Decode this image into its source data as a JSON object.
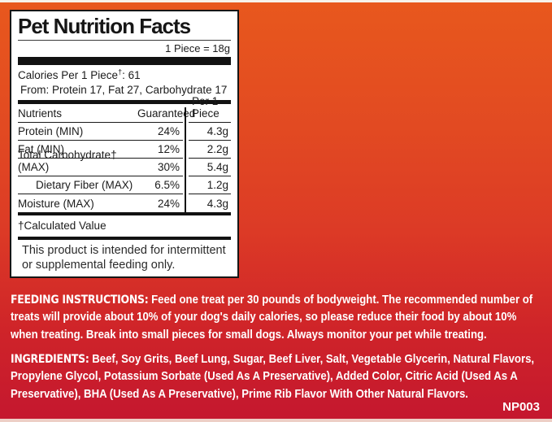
{
  "panel": {
    "title": "Pet Nutrition Facts",
    "serving": "1 Piece = 18g",
    "calories": {
      "prefix": "Calories Per 1 Piece",
      "dagger": "†",
      "suffix": ": 61",
      "from_line": "From: Protein 17, Fat 27, Carbohydrate 17"
    },
    "table": {
      "headers": [
        "Nutrients",
        "Guaranteed",
        "Per 1 Piece"
      ],
      "rows": [
        {
          "name": "Protein (MIN)",
          "guaranteed": "24%",
          "per_piece": "4.3g"
        },
        {
          "name": "Fat (MIN)",
          "guaranteed": "12%",
          "per_piece": "2.2g"
        },
        {
          "name": "Total Carbohydrate† (MAX)",
          "guaranteed": "30%",
          "per_piece": "5.4g"
        },
        {
          "name": "Dietary Fiber (MAX)",
          "guaranteed": "6.5%",
          "per_piece": "1.2g"
        },
        {
          "name": "Moisture (MAX)",
          "guaranteed": "24%",
          "per_piece": "4.3g"
        }
      ]
    },
    "footnote": "†Calculated Value",
    "disclaimer": "This product is intended for intermittent or supplemental feeding only."
  },
  "feeding": {
    "label": "FEEDING INSTRUCTIONS:",
    "text": "Feed one treat per 30 pounds of bodyweight. The recommended number of treats will provide about 10% of your dog's daily calories, so please reduce their food by about 10% when treating. Break into small pieces for small dogs. Always monitor your pet while treating."
  },
  "ingredients": {
    "label": "INGREDIENTS:",
    "text": "Beef, Soy Grits, Beef Lung, Sugar, Beef Liver, Salt, Vegetable Glycerin, Natural Flavors, Propylene Glycol, Potassium Sorbate (Used As A Preservative), Added Color, Citric Acid (Used As A Preservative), BHA (Used As A Preservative), Prime Rib Flavor With Other Natural Flavors."
  },
  "code": "NP003",
  "colors": {
    "bg_top": "#e8581d",
    "bg_bottom": "#c4172f",
    "panel_bg": "#ffffff",
    "panel_border": "#161616",
    "text_dark": "#1b1b1b",
    "text_light": "#ffffff"
  }
}
